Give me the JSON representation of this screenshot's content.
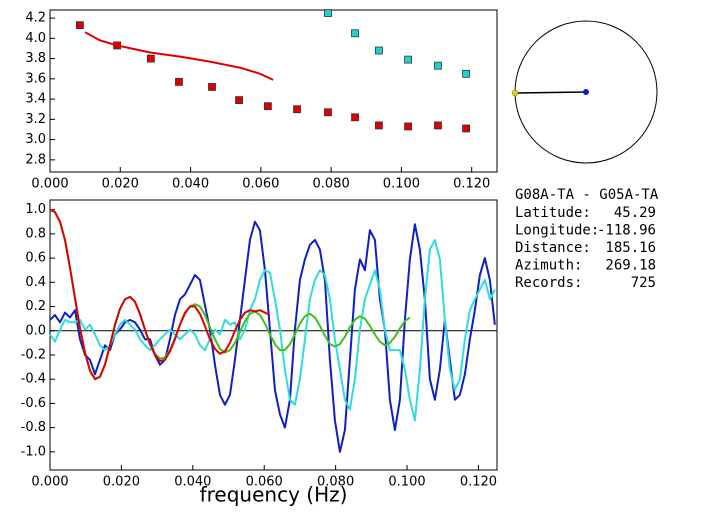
{
  "chart_data": [
    {
      "type": "scatter",
      "xlim": [
        0,
        0.1272
      ],
      "ylim": [
        2.68,
        4.28
      ],
      "xticks": [
        {
          "value": 0,
          "label": "0.000"
        },
        {
          "value": 0.02,
          "label": "0.020"
        },
        {
          "value": 0.04,
          "label": "0.040"
        },
        {
          "value": 0.06,
          "label": "0.060"
        },
        {
          "value": 0.08,
          "label": "0.080"
        },
        {
          "value": 0.1,
          "label": "0.100"
        },
        {
          "value": 0.12,
          "label": "0.120"
        }
      ],
      "yticks": [
        4.2,
        {
          "value": 4,
          "label": "4.0"
        },
        3.8,
        3.6,
        3.4,
        3.2,
        {
          "value": 3,
          "label": "3.0"
        },
        2.8
      ],
      "series": [
        {
          "color": "#e00000",
          "x": [
            0.0085,
            0.0191,
            0.0287,
            0.0367,
            0.0461,
            0.0538,
            0.062,
            0.0703,
            0.0791,
            0.0868,
            0.0936,
            0.1019,
            0.1104,
            0.1184
          ],
          "values": [
            4.13,
            3.93,
            3.8,
            3.57,
            3.52,
            3.39,
            3.33,
            3.3,
            3.27,
            3.22,
            3.14,
            3.13,
            3.14,
            3.11
          ]
        },
        {
          "color": "#20d0d0",
          "x": [
            0.0791,
            0.0868,
            0.0936,
            0.1019,
            0.1104,
            0.1184
          ],
          "values": [
            4.25,
            4.05,
            3.88,
            3.79,
            3.73,
            3.65
          ]
        },
        {
          "type": "line",
          "color": "#e00000",
          "x": [
            0.01,
            0.0142,
            0.0191,
            0.0285,
            0.037,
            0.0455,
            0.0541,
            0.0598,
            0.0635
          ],
          "values": [
            4.06,
            3.98,
            3.93,
            3.86,
            3.82,
            3.77,
            3.71,
            3.65,
            3.59
          ]
        }
      ]
    },
    {
      "type": "line",
      "xlabel": "frequency (Hz)",
      "xlim": [
        0,
        0.1252
      ],
      "ylim": [
        -1.15,
        1.08
      ],
      "hline": 0,
      "xticks": [
        {
          "value": 0,
          "label": "0.000"
        },
        {
          "value": 0.02,
          "label": "0.020"
        },
        {
          "value": 0.04,
          "label": "0.040"
        },
        {
          "value": 0.06,
          "label": "0.060"
        },
        {
          "value": 0.08,
          "label": "0.080"
        },
        {
          "value": 0.1,
          "label": "0.100"
        },
        {
          "value": 0.12,
          "label": "0.120"
        }
      ],
      "yticks": [
        {
          "value": 1,
          "label": "1.0"
        },
        0.8,
        0.6,
        0.4,
        0.2,
        {
          "value": 0,
          "label": "0.0"
        },
        -0.2,
        -0.4,
        -0.6,
        -0.8,
        {
          "value": -1,
          "label": "-1.0"
        }
      ],
      "x": [
        0,
        0.0014,
        0.0028,
        0.0042,
        0.0056,
        0.007,
        0.0084,
        0.0098,
        0.0112,
        0.0126,
        0.014,
        0.0154,
        0.0168,
        0.0182,
        0.0196,
        0.021,
        0.0224,
        0.0238,
        0.0252,
        0.0266,
        0.028,
        0.0294,
        0.0308,
        0.0322,
        0.0336,
        0.035,
        0.0364,
        0.0378,
        0.0392,
        0.0406,
        0.042,
        0.0434,
        0.0448,
        0.0462,
        0.0476,
        0.049,
        0.0504,
        0.0518,
        0.0532,
        0.0546,
        0.056,
        0.0574,
        0.0588,
        0.0602,
        0.0616,
        0.063,
        0.0644,
        0.0658,
        0.0672,
        0.0686,
        0.07,
        0.0714,
        0.0728,
        0.0742,
        0.0756,
        0.077,
        0.0784,
        0.0798,
        0.0812,
        0.0826,
        0.084,
        0.0854,
        0.0868,
        0.0882,
        0.0896,
        0.091,
        0.0924,
        0.0938,
        0.0952,
        0.0966,
        0.098,
        0.0994,
        0.1008,
        0.1022,
        0.1036,
        0.105,
        0.1064,
        0.1078,
        0.1092,
        0.1106,
        0.112,
        0.1134,
        0.1148,
        0.1162,
        0.1176,
        0.119,
        0.1204,
        0.1218,
        0.1232,
        0.1246
      ],
      "series": [
        {
          "color": "#1020c0",
          "values": [
            0.09,
            0.13,
            0.07,
            0.15,
            0.11,
            0.17,
            -0.07,
            -0.2,
            -0.24,
            -0.36,
            -0.24,
            -0.12,
            -0.16,
            -0.03,
            0.01,
            0.07,
            0.09,
            0.07,
            0.01,
            -0.07,
            -0.07,
            -0.2,
            -0.28,
            -0.24,
            -0.07,
            0.13,
            0.26,
            0.3,
            0.38,
            0.46,
            0.42,
            0.21,
            0.01,
            -0.28,
            -0.53,
            -0.61,
            -0.53,
            -0.24,
            0.09,
            0.42,
            0.75,
            0.9,
            0.83,
            0.5,
            0.01,
            -0.49,
            -0.69,
            -0.8,
            -0.57,
            0.01,
            0.42,
            0.59,
            0.71,
            0.75,
            0.67,
            0.42,
            -0.24,
            -0.74,
            -1.0,
            -0.82,
            -0.24,
            0.34,
            0.59,
            0.5,
            0.83,
            0.75,
            0.26,
            0.01,
            -0.57,
            -0.82,
            -0.57,
            0.09,
            0.59,
            0.88,
            0.67,
            0.26,
            -0.4,
            -0.57,
            -0.32,
            0.09,
            -0.24,
            -0.57,
            -0.53,
            -0.36,
            -0.07,
            0.17,
            0.46,
            0.6,
            0.42,
            0.05
          ]
        },
        {
          "color": "#30dcdc",
          "values": [
            -0.03,
            -0.09,
            0.01,
            0.09,
            0.07,
            0.07,
            0.09,
            0.01,
            0.05,
            -0.03,
            -0.12,
            -0.16,
            -0.12,
            -0.03,
            0.05,
            0.09,
            0.05,
            0.01,
            -0.07,
            -0.12,
            -0.16,
            -0.12,
            -0.07,
            -0.03,
            0.01,
            -0.03,
            -0.07,
            -0.03,
            0.01,
            -0.03,
            -0.12,
            -0.16,
            -0.07,
            0.01,
            -0.03,
            0.09,
            0.05,
            0.07,
            -0.07,
            0.01,
            0.17,
            0.26,
            0.42,
            0.5,
            0.48,
            0.26,
            0.01,
            -0.32,
            -0.57,
            -0.61,
            -0.4,
            -0.07,
            0.26,
            0.42,
            0.5,
            0.46,
            0.26,
            -0.07,
            -0.32,
            -0.57,
            -0.65,
            -0.4,
            0.01,
            0.26,
            0.38,
            0.5,
            0.34,
            0.01,
            -0.16,
            -0.16,
            -0.16,
            -0.32,
            -0.57,
            -0.74,
            -0.32,
            0.26,
            0.67,
            0.75,
            0.59,
            0.09,
            -0.32,
            -0.49,
            -0.4,
            -0.07,
            0.17,
            0.26,
            0.34,
            0.42,
            0.26,
            0.34
          ]
        },
        {
          "color": "#40c020",
          "values": [
            1.0,
            0.98,
            0.9,
            0.75,
            0.52,
            0.27,
            0.02,
            -0.18,
            -0.33,
            -0.4,
            -0.38,
            -0.28,
            -0.12,
            0.05,
            0.18,
            0.26,
            0.28,
            0.24,
            0.14,
            0.01,
            -0.11,
            -0.19,
            -0.23,
            -0.22,
            -0.16,
            -0.06,
            0.05,
            0.14,
            0.2,
            0.22,
            0.2,
            0.13,
            0.03,
            -0.07,
            -0.15,
            -0.18,
            -0.16,
            -0.1,
            -0.01,
            0.08,
            0.14,
            0.16,
            0.13,
            0.06,
            -0.03,
            -0.11,
            -0.16,
            -0.16,
            -0.11,
            -0.03,
            0.06,
            0.12,
            0.14,
            0.11,
            0.04,
            -0.04,
            -0.11,
            -0.13,
            -0.11,
            -0.05,
            0.03,
            0.09,
            0.12,
            0.1,
            0.04,
            -0.03,
            -0.09,
            -0.12,
            -0.1,
            -0.05,
            0.02,
            0.08,
            0.11,
            null,
            null,
            null,
            null,
            null,
            null,
            null,
            null,
            null,
            null,
            null,
            null,
            null,
            null,
            null,
            null,
            null
          ]
        },
        {
          "color": "#e00000",
          "values": [
            1.0,
            0.98,
            0.9,
            0.75,
            0.52,
            0.27,
            0.02,
            -0.18,
            -0.33,
            -0.4,
            -0.38,
            -0.28,
            -0.12,
            0.05,
            0.18,
            0.26,
            0.28,
            0.24,
            0.14,
            0.01,
            -0.11,
            -0.2,
            -0.25,
            -0.24,
            -0.17,
            -0.07,
            0.05,
            0.15,
            0.2,
            0.2,
            0.14,
            0.04,
            -0.07,
            -0.15,
            -0.19,
            -0.17,
            -0.1,
            0.0,
            0.09,
            0.15,
            0.17,
            0.16,
            0.17,
            0.15,
            0.13,
            null,
            null,
            null,
            null,
            null,
            null,
            null,
            null,
            null,
            null,
            null,
            null,
            null,
            null,
            null,
            null,
            null,
            null,
            null,
            null,
            null,
            null,
            null,
            null,
            null,
            null,
            null,
            null,
            null,
            null,
            null,
            null,
            null,
            null,
            null,
            null,
            null,
            null,
            null,
            null,
            null,
            null,
            null,
            null,
            null
          ]
        }
      ]
    }
  ],
  "station_info": {
    "title": "G08A-TA - G05A-TA",
    "fields": [
      {
        "label": "Latitude:",
        "value": 45.29
      },
      {
        "label": "Longitude:",
        "value": -118.96
      },
      {
        "label": "Distance:",
        "value": 185.16
      },
      {
        "label": "Azimuth:",
        "value": 269.18
      },
      {
        "label": "Records:",
        "value": 725
      }
    ]
  }
}
